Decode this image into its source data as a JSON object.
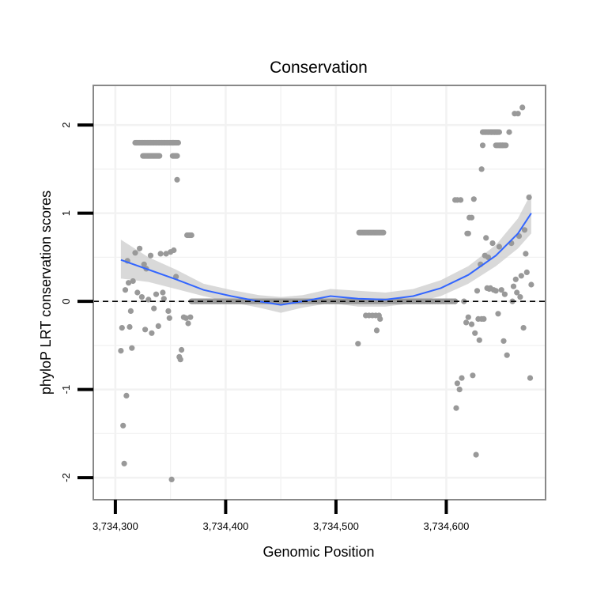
{
  "chart_data": {
    "type": "scatter",
    "title": "Conservation",
    "xlabel": "Genomic Position",
    "ylabel": "phyloP LRT conservation scores",
    "xlim": [
      3734280,
      3734690
    ],
    "ylim": [
      -2.25,
      2.45
    ],
    "x_ticks": [
      3734300,
      3734400,
      3734500,
      3734600
    ],
    "x_tick_labels": [
      "3,734,300",
      "3,734,400",
      "3,734,500",
      "3,734,600"
    ],
    "y_ticks": [
      -2,
      -1,
      0,
      1,
      2
    ],
    "y_tick_labels": [
      "-2",
      "-1",
      "0",
      "1",
      "2"
    ],
    "reference_line": {
      "y": 0,
      "style": "dashed"
    },
    "colors": {
      "points": "#999999",
      "smooth": "#3366ff",
      "ribbon": "#cccccc",
      "panel_border": "#888888",
      "grid": "#f2f2f2",
      "reference": "#000000"
    },
    "series": [
      {
        "name": "scores",
        "kind": "points",
        "points": [
          [
            3734305,
            -0.56
          ],
          [
            3734306,
            -0.3
          ],
          [
            3734307,
            -1.41
          ],
          [
            3734308,
            -1.84
          ],
          [
            3734309,
            0.13
          ],
          [
            3734310,
            -1.07
          ],
          [
            3734311,
            0.46
          ],
          [
            3734312,
            0.21
          ],
          [
            3734313,
            -0.29
          ],
          [
            3734314,
            -0.11
          ],
          [
            3734315,
            -0.53
          ],
          [
            3734316,
            0.23
          ],
          [
            3734318,
            0.55
          ],
          [
            3734320,
            0.1
          ],
          [
            3734322,
            0.6
          ],
          [
            3734324,
            0.05
          ],
          [
            3734326,
            0.42
          ],
          [
            3734327,
            -0.32
          ],
          [
            3734328,
            0.37
          ],
          [
            3734330,
            0.02
          ],
          [
            3734332,
            0.52
          ],
          [
            3734333,
            -0.36
          ],
          [
            3734335,
            -0.08
          ],
          [
            3734337,
            0.08
          ],
          [
            3734339,
            -0.28
          ],
          [
            3734341,
            0.54
          ],
          [
            3734343,
            0.1
          ],
          [
            3734344,
            0.03
          ],
          [
            3734346,
            0.54
          ],
          [
            3734348,
            -0.11
          ],
          [
            3734349,
            -0.19
          ],
          [
            3734350,
            0.56
          ],
          [
            3734351,
            -2.02
          ],
          [
            3734353,
            0.58
          ],
          [
            3734355,
            0.28
          ],
          [
            3734356,
            1.38
          ],
          [
            3734358,
            -0.63
          ],
          [
            3734359,
            -0.66
          ],
          [
            3734360,
            -0.55
          ],
          [
            3734362,
            -0.18
          ],
          [
            3734364,
            -0.19
          ],
          [
            3734366,
            -0.25
          ],
          [
            3734368,
            -0.18
          ],
          [
            3734365,
            0.75
          ],
          [
            3734366,
            0.75
          ],
          [
            3734367,
            0.75
          ],
          [
            3734368,
            0.75
          ],
          [
            3734369,
            0.75
          ],
          [
            3734540,
            0.78
          ],
          [
            3734541,
            0.78
          ],
          [
            3734542,
            0.78
          ],
          [
            3734543,
            0.78
          ],
          [
            3734520,
            -0.48
          ],
          [
            3734527,
            -0.16
          ],
          [
            3734530,
            -0.16
          ],
          [
            3734533,
            -0.16
          ],
          [
            3734536,
            -0.16
          ],
          [
            3734537,
            -0.33
          ],
          [
            3734539,
            -0.16
          ],
          [
            3734540,
            -0.2
          ],
          [
            3734608,
            1.15
          ],
          [
            3734610,
            1.15
          ],
          [
            3734613,
            1.15
          ],
          [
            3734608,
            0.0
          ],
          [
            3734609,
            -1.21
          ],
          [
            3734610,
            -0.93
          ],
          [
            3734612,
            -1.0
          ],
          [
            3734614,
            -0.87
          ],
          [
            3734616,
            0.0
          ],
          [
            3734618,
            -0.24
          ],
          [
            3734619,
            0.77
          ],
          [
            3734620,
            -0.18
          ],
          [
            3734620,
            0.77
          ],
          [
            3734621,
            0.95
          ],
          [
            3734623,
            0.95
          ],
          [
            3734623,
            -0.26
          ],
          [
            3734624,
            -0.84
          ],
          [
            3734625,
            1.16
          ],
          [
            3734626,
            -0.36
          ],
          [
            3734627,
            -1.74
          ],
          [
            3734628,
            0.12
          ],
          [
            3734629,
            -0.2
          ],
          [
            3734630,
            -0.44
          ],
          [
            3734631,
            0.42
          ],
          [
            3734632,
            1.5
          ],
          [
            3734632,
            -0.2
          ],
          [
            3734633,
            1.77
          ],
          [
            3734634,
            -0.2
          ],
          [
            3734635,
            0.52
          ],
          [
            3734636,
            0.72
          ],
          [
            3734637,
            0.15
          ],
          [
            3734638,
            0.5
          ],
          [
            3734639,
            0.14
          ],
          [
            3734640,
            0.15
          ],
          [
            3734641,
            1.92
          ],
          [
            3734642,
            0.66
          ],
          [
            3734643,
            0.13
          ],
          [
            3734644,
            1.92
          ],
          [
            3734645,
            0.12
          ],
          [
            3734646,
            1.92
          ],
          [
            3734647,
            -0.14
          ],
          [
            3734648,
            0.62
          ],
          [
            3734649,
            1.77
          ],
          [
            3734650,
            0.13
          ],
          [
            3734651,
            1.77
          ],
          [
            3734652,
            -0.45
          ],
          [
            3734653,
            0.08
          ],
          [
            3734654,
            1.77
          ],
          [
            3734655,
            -0.61
          ],
          [
            3734657,
            1.92
          ],
          [
            3734659,
            0.66
          ],
          [
            3734660,
            0.0
          ],
          [
            3734661,
            0.17
          ],
          [
            3734662,
            2.13
          ],
          [
            3734663,
            0.25
          ],
          [
            3734664,
            0.1
          ],
          [
            3734665,
            2.13
          ],
          [
            3734666,
            0.74
          ],
          [
            3734667,
            0.05
          ],
          [
            3734668,
            0.29
          ],
          [
            3734669,
            2.2
          ],
          [
            3734670,
            -0.3
          ],
          [
            3734671,
            0.81
          ],
          [
            3734672,
            0.54
          ],
          [
            3734673,
            0.33
          ],
          [
            3734675,
            1.18
          ],
          [
            3734676,
            -0.87
          ],
          [
            3734677,
            0.19
          ]
        ],
        "runs": [
          {
            "x0": 3734318,
            "x1": 3734353,
            "step": 1,
            "y": 1.8
          },
          {
            "x0": 3734325,
            "x1": 3734340,
            "step": 1,
            "y": 1.65
          },
          {
            "x0": 3734352,
            "x1": 3734356,
            "step": 1,
            "y": 1.65
          },
          {
            "x0": 3734352,
            "x1": 3734357,
            "step": 1,
            "y": 1.8
          },
          {
            "x0": 3734369,
            "x1": 3734608,
            "step": 1,
            "y": 0
          },
          {
            "x0": 3734521,
            "x1": 3734539,
            "step": 1,
            "y": 0.78
          },
          {
            "x0": 3734633,
            "x1": 3734648,
            "step": 1,
            "y": 1.92
          },
          {
            "x0": 3734645,
            "x1": 3734653,
            "step": 1,
            "y": 1.77
          }
        ]
      },
      {
        "name": "smooth",
        "kind": "line",
        "x": [
          3734305,
          3734330,
          3734355,
          3734380,
          3734405,
          3734430,
          3734450,
          3734470,
          3734495,
          3734520,
          3734545,
          3734570,
          3734595,
          3734620,
          3734645,
          3734665,
          3734677
        ],
        "y": [
          0.47,
          0.36,
          0.25,
          0.13,
          0.06,
          0.0,
          -0.04,
          0.0,
          0.06,
          0.03,
          0.02,
          0.06,
          0.15,
          0.3,
          0.52,
          0.77,
          1.0
        ],
        "lower": [
          0.26,
          0.22,
          0.14,
          0.06,
          -0.01,
          -0.07,
          -0.13,
          -0.07,
          -0.02,
          -0.06,
          -0.06,
          -0.02,
          0.06,
          0.2,
          0.4,
          0.6,
          0.77
        ],
        "upper": [
          0.7,
          0.5,
          0.36,
          0.2,
          0.13,
          0.07,
          0.05,
          0.07,
          0.14,
          0.12,
          0.1,
          0.14,
          0.24,
          0.4,
          0.64,
          0.94,
          1.23
        ]
      }
    ]
  }
}
